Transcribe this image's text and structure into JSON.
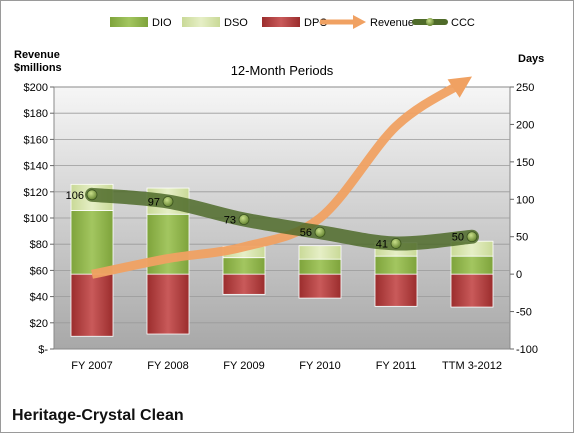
{
  "chart_data": {
    "type": "bar",
    "title": "12-Month Periods",
    "company": "Heritage-Crystal Clean",
    "left_axis_title": [
      "Revenue",
      "$millions"
    ],
    "right_axis_title": "Days",
    "categories": [
      "FY 2007",
      "FY 2008",
      "FY 2009",
      "FY 2010",
      "FY 2011",
      "TTM 3-2012"
    ],
    "left_axis": {
      "min": 0,
      "max": 200,
      "ticks": [
        0,
        20,
        40,
        60,
        80,
        100,
        120,
        140,
        160,
        180,
        200
      ],
      "tick_labels": [
        "$-",
        "$20",
        "$40",
        "$60",
        "$80",
        "$100",
        "$120",
        "$140",
        "$160",
        "$180",
        "$200"
      ]
    },
    "right_axis": {
      "min": -100,
      "max": 250,
      "ticks": [
        -100,
        -50,
        0,
        50,
        100,
        150,
        200,
        250
      ],
      "tick_labels": [
        "-100",
        "-50",
        "0",
        "50",
        "100",
        "150",
        "200",
        "250"
      ]
    },
    "series": [
      {
        "name": "DIO",
        "axis": "right",
        "kind": "stacked-bar",
        "values": [
          85,
          80,
          22,
          20,
          24,
          24
        ]
      },
      {
        "name": "DSO",
        "axis": "right",
        "kind": "stacked-bar",
        "values": [
          35,
          35,
          15,
          18,
          18,
          20
        ]
      },
      {
        "name": "DPO",
        "axis": "right",
        "kind": "negative-bar",
        "values": [
          -83,
          -80,
          -27,
          -32,
          -43,
          -44
        ]
      },
      {
        "name": "Revenue",
        "axis": "left",
        "kind": "arrow-line",
        "values": [
          57,
          69,
          78,
          100,
          170,
          208
        ]
      },
      {
        "name": "CCC",
        "axis": "right",
        "kind": "line",
        "values": [
          106,
          97,
          73,
          56,
          41,
          50
        ],
        "labels": [
          "106",
          "97",
          "73",
          "56",
          "41",
          "50"
        ]
      }
    ],
    "legend": {
      "position": "top",
      "items": [
        "DIO",
        "DSO",
        "DPO",
        "Revenue",
        "CCC"
      ]
    },
    "grid": true,
    "colors": {
      "DIO": "#8db04a",
      "DSO": "#d6e4a8",
      "DPO": "#b33a3a",
      "Revenue": "#f0a162",
      "CCC": "#4f6b2a",
      "plot_bg_top": "#f4f4f4",
      "plot_bg_bottom": "#a9a9a9"
    }
  }
}
